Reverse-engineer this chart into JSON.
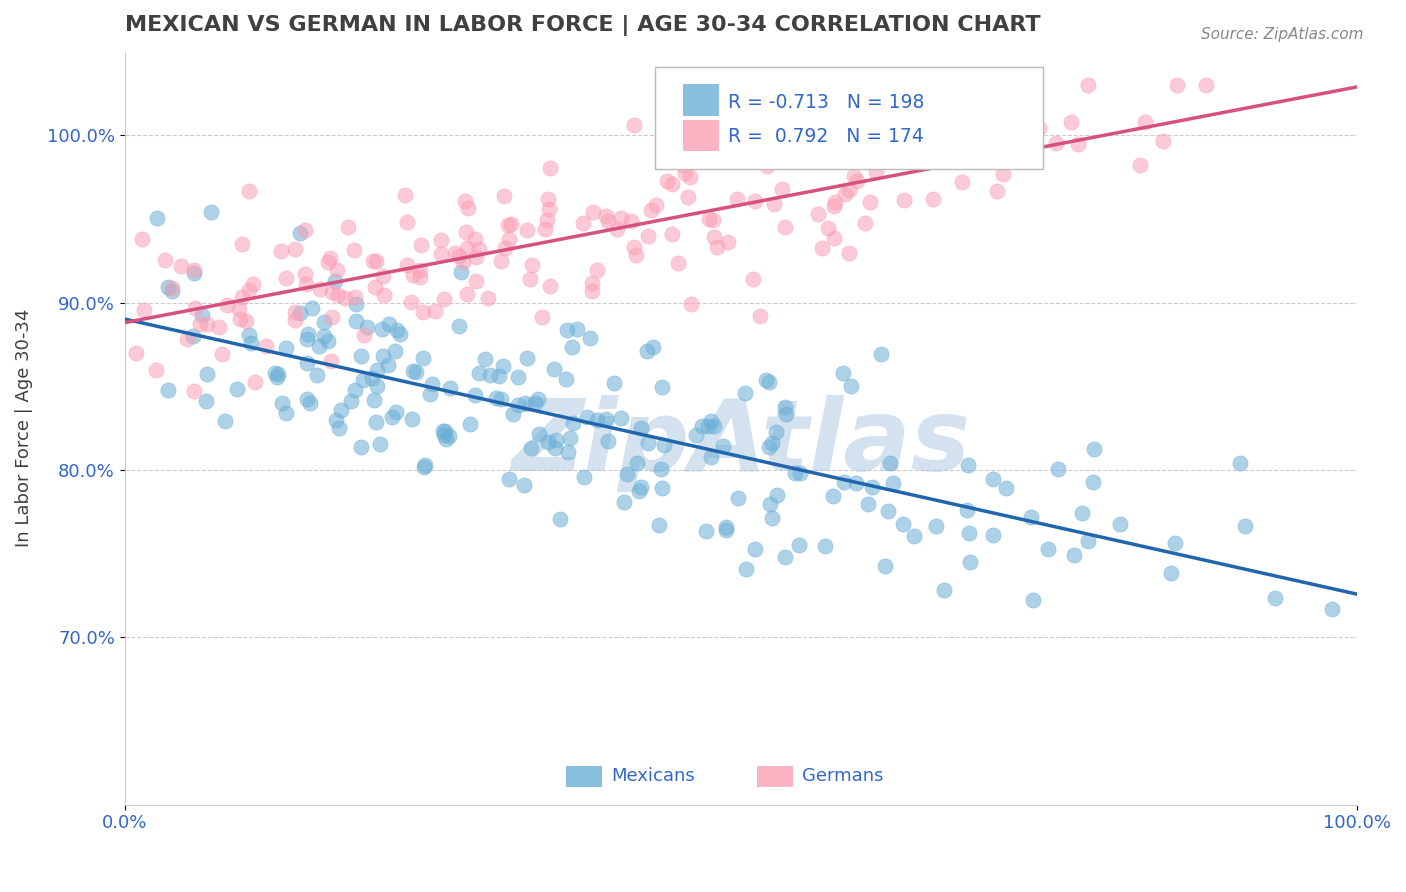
{
  "title": "MEXICAN VS GERMAN IN LABOR FORCE | AGE 30-34 CORRELATION CHART",
  "source_text": "Source: ZipAtlas.com",
  "xlabel": "",
  "ylabel": "In Labor Force | Age 30-34",
  "xlim": [
    0.0,
    1.0
  ],
  "ylim": [
    0.6,
    1.05
  ],
  "yticks": [
    0.7,
    0.8,
    0.9,
    1.0
  ],
  "ytick_labels": [
    "70.0%",
    "80.0%",
    "90.0%",
    "100.0%"
  ],
  "xtick_labels": [
    "0.0%",
    "100.0%"
  ],
  "blue_R": -0.713,
  "blue_N": 198,
  "pink_R": 0.792,
  "pink_N": 174,
  "blue_color": "#6baed6",
  "pink_color": "#fa9fb5",
  "blue_line_color": "#2166ac",
  "pink_line_color": "#d6517d",
  "blue_label": "Mexicans",
  "pink_label": "Germans",
  "legend_text_color": "#3366cc",
  "title_color": "#404040",
  "axis_label_color": "#404040",
  "tick_label_color": "#3366cc",
  "watermark_text": "ZipAtlas",
  "watermark_color": "#aac4e0",
  "background_color": "#ffffff",
  "grid_color": "#cccccc"
}
